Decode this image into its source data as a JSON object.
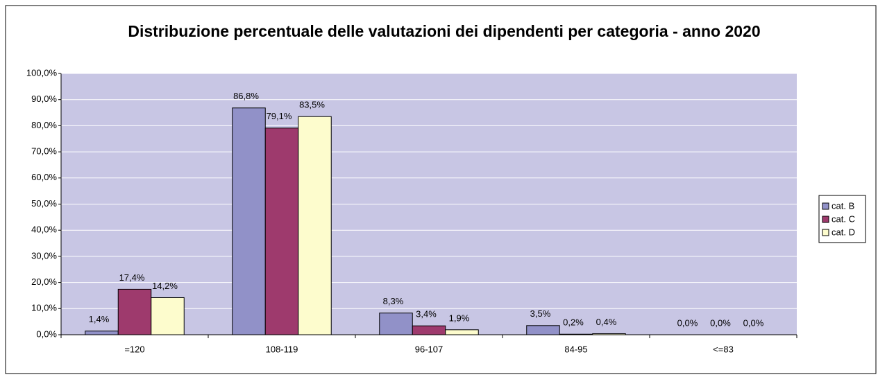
{
  "chart_data": {
    "type": "bar",
    "title": "Distribuzione percentuale delle valutazioni dei dipendenti per categoria - anno 2020",
    "categories": [
      "=120",
      "108-119",
      "96-107",
      "84-95",
      "<=83"
    ],
    "series": [
      {
        "name": "cat. B",
        "color": "#9191c8",
        "values": [
          1.4,
          86.8,
          8.3,
          3.5,
          0.0
        ],
        "value_labels": [
          "1,4%",
          "86,8%",
          "8,3%",
          "3,5%",
          "0,0%"
        ]
      },
      {
        "name": "cat. C",
        "color": "#9e3a6d",
        "values": [
          17.4,
          79.1,
          3.4,
          0.2,
          0.0
        ],
        "value_labels": [
          "17,4%",
          "79,1%",
          "3,4%",
          "0,2%",
          "0,0%"
        ]
      },
      {
        "name": "cat. D",
        "color": "#fdfccd",
        "values": [
          14.2,
          83.5,
          1.9,
          0.4,
          0.0
        ],
        "value_labels": [
          "14,2%",
          "83,5%",
          "1,9%",
          "0,4%",
          "0,0%"
        ]
      }
    ],
    "ylim": [
      0,
      100
    ],
    "yticks": [
      {
        "value": 0,
        "label": "0,0%"
      },
      {
        "value": 10,
        "label": "10,0%"
      },
      {
        "value": 20,
        "label": "20,0%"
      },
      {
        "value": 30,
        "label": "30,0%"
      },
      {
        "value": 40,
        "label": "40,0%"
      },
      {
        "value": 50,
        "label": "50,0%"
      },
      {
        "value": 60,
        "label": "60,0%"
      },
      {
        "value": 70,
        "label": "70,0%"
      },
      {
        "value": 80,
        "label": "80,0%"
      },
      {
        "value": 90,
        "label": "90,0%"
      },
      {
        "value": 100,
        "label": "100,0%"
      }
    ],
    "grid": true,
    "legend": "right",
    "plot_background": "#c8c6e4"
  }
}
